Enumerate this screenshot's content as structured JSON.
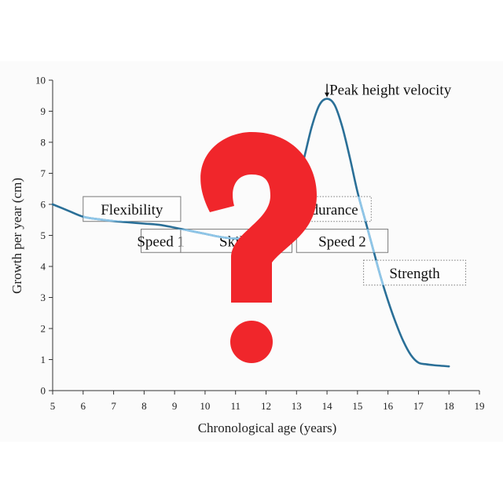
{
  "chart_data": {
    "type": "line",
    "xlabel": "Chronological age (years)",
    "ylabel": "Growth per year (cm)",
    "xlim": [
      5,
      19
    ],
    "ylim": [
      0,
      10
    ],
    "xticks": [
      5,
      6,
      7,
      8,
      9,
      10,
      11,
      12,
      13,
      14,
      15,
      16,
      17,
      18,
      19
    ],
    "yticks": [
      0,
      1,
      2,
      3,
      4,
      5,
      6,
      7,
      8,
      9,
      10
    ],
    "grid": false,
    "series": [
      {
        "color": "#2a6f97",
        "highlight_color": "#8fc6e8",
        "x": [
          5.0,
          5.5,
          6.0,
          6.5,
          7.0,
          7.5,
          8.0,
          8.5,
          9.0,
          9.5,
          10.0,
          10.5,
          11.0,
          11.5,
          12.0,
          12.5,
          13.0,
          13.25,
          13.5,
          13.75,
          14.0,
          14.25,
          14.5,
          14.75,
          15.0,
          15.25,
          15.5,
          15.75,
          16.0,
          16.25,
          16.5,
          16.75,
          17.0,
          17.25,
          17.5,
          18.0
        ],
        "y": [
          6.0,
          5.8,
          5.6,
          5.52,
          5.46,
          5.42,
          5.38,
          5.34,
          5.25,
          5.15,
          5.05,
          4.95,
          4.9,
          4.95,
          5.1,
          5.6,
          6.6,
          7.5,
          8.5,
          9.2,
          9.4,
          9.2,
          8.5,
          7.5,
          6.4,
          5.5,
          4.6,
          3.7,
          2.9,
          2.2,
          1.6,
          1.15,
          0.9,
          0.85,
          0.82,
          0.78
        ]
      }
    ],
    "annotations": [
      {
        "text": "Peak height velocity",
        "x": 14,
        "y": 9.4,
        "arrow": "↓"
      }
    ],
    "boxes": [
      {
        "label": "Flexibility",
        "x0": 6.0,
        "x1": 9.2,
        "y_top": 6.25,
        "y_bottom": 5.45,
        "border": "solid"
      },
      {
        "label": "Speed 1",
        "x0": 7.9,
        "x1": 9.2,
        "y_top": 5.2,
        "y_bottom": 4.45,
        "border": "solid"
      },
      {
        "label": "Skills",
        "x0": 9.2,
        "x1": 12.85,
        "y_top": 5.2,
        "y_bottom": 4.45,
        "border": "solid"
      },
      {
        "label": "Endurance",
        "x0": 12.5,
        "x1": 15.45,
        "y_top": 6.25,
        "y_bottom": 5.45,
        "border": "dotted"
      },
      {
        "label": "Speed 2",
        "x0": 13.0,
        "x1": 16.0,
        "y_top": 5.2,
        "y_bottom": 4.45,
        "border": "solid"
      },
      {
        "label": "Strength",
        "x0": 15.2,
        "x1": 18.55,
        "y_top": 4.2,
        "y_bottom": 3.4,
        "border": "dotted"
      }
    ]
  },
  "overlay": {
    "icon": "question-mark-icon",
    "glyph": "?",
    "color": "#f0262b"
  }
}
